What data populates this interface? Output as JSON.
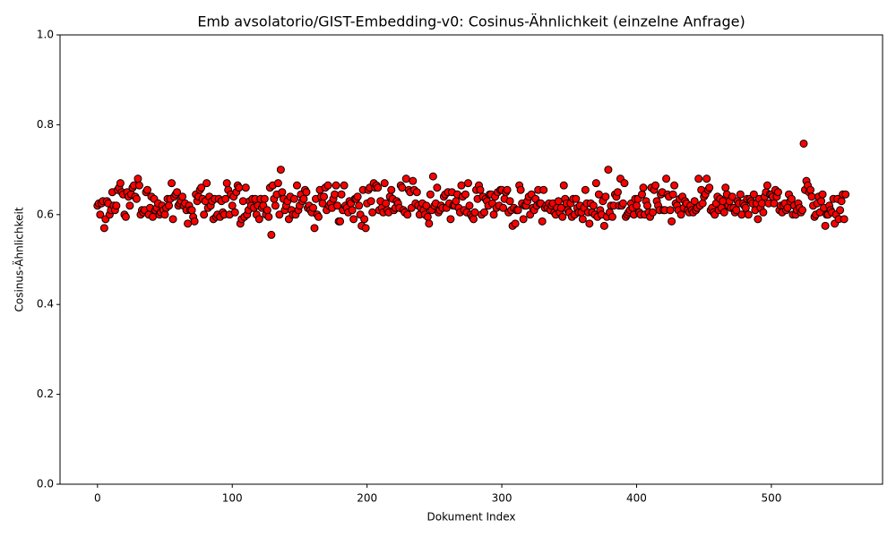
{
  "chart_data": {
    "type": "scatter",
    "title": "Emb avsolatorio/GIST-Embedding-v0: Cosinus-Ähnlichkeit (einzelne Anfrage)",
    "xlabel": "Dokument Index",
    "ylabel": "Cosinus-Ähnlichkeit",
    "color": "#ff0000",
    "edgecolor": "#000000",
    "xlim": [
      -27.8,
      582.5
    ],
    "xticks": [
      0,
      100,
      200,
      300,
      400,
      500
    ],
    "ylim": [
      0,
      1
    ],
    "yticks": [
      {
        "value": 0,
        "label": "0.0"
      },
      {
        "value": 0.2,
        "label": "0.2"
      },
      {
        "value": 0.4,
        "label": "0.4"
      },
      {
        "value": 0.6,
        "label": "0.6"
      },
      {
        "value": 0.8,
        "label": "0.8"
      },
      {
        "value": 1,
        "label": "1.0"
      }
    ],
    "grid": false,
    "x": [
      0,
      1,
      2,
      3,
      4,
      5,
      6,
      7,
      8,
      9,
      10,
      11,
      12,
      13,
      14,
      15,
      16,
      17,
      18,
      19,
      20,
      21,
      22,
      23,
      24,
      25,
      26,
      27,
      28,
      29,
      30,
      31,
      32,
      33,
      34,
      35,
      36,
      37,
      38,
      39,
      40,
      41,
      42,
      43,
      44,
      45,
      46,
      47,
      48,
      49,
      50,
      51,
      52,
      53,
      54,
      55,
      56,
      57,
      58,
      59,
      60,
      61,
      62,
      63,
      64,
      65,
      66,
      67,
      68,
      69,
      70,
      71,
      72,
      73,
      74,
      75,
      76,
      77,
      78,
      79,
      80,
      81,
      82,
      83,
      84,
      85,
      86,
      87,
      88,
      89,
      90,
      91,
      92,
      93,
      94,
      95,
      96,
      97,
      98,
      99,
      100,
      101,
      102,
      103,
      104,
      105,
      106,
      107,
      108,
      109,
      110,
      111,
      112,
      113,
      114,
      115,
      116,
      117,
      118,
      119,
      120,
      121,
      122,
      123,
      124,
      125,
      126,
      127,
      128,
      129,
      130,
      131,
      132,
      133,
      134,
      135,
      136,
      137,
      138,
      139,
      140,
      141,
      142,
      143,
      144,
      145,
      146,
      147,
      148,
      149,
      150,
      151,
      152,
      153,
      154,
      155,
      156,
      157,
      158,
      159,
      160,
      161,
      162,
      163,
      164,
      165,
      166,
      167,
      168,
      169,
      170,
      171,
      172,
      173,
      174,
      175,
      176,
      177,
      178,
      179,
      180,
      181,
      182,
      183,
      184,
      185,
      186,
      187,
      188,
      189,
      190,
      191,
      192,
      193,
      194,
      195,
      196,
      197,
      198,
      199,
      200,
      201,
      202,
      203,
      204,
      205,
      206,
      207,
      208,
      209,
      210,
      211,
      212,
      213,
      214,
      215,
      216,
      217,
      218,
      219,
      220,
      221,
      222,
      223,
      224,
      225,
      226,
      227,
      228,
      229,
      230,
      231,
      232,
      233,
      234,
      235,
      236,
      237,
      238,
      239,
      240,
      241,
      242,
      243,
      244,
      245,
      246,
      247,
      248,
      249,
      250,
      251,
      252,
      253,
      254,
      255,
      256,
      257,
      258,
      259,
      260,
      261,
      262,
      263,
      264,
      265,
      266,
      267,
      268,
      269,
      270,
      271,
      272,
      273,
      274,
      275,
      276,
      277,
      278,
      279,
      280,
      281,
      282,
      283,
      284,
      285,
      286,
      287,
      288,
      289,
      290,
      291,
      292,
      293,
      294,
      295,
      296,
      297,
      298,
      299,
      300,
      301,
      302,
      303,
      304,
      305,
      306,
      307,
      308,
      309,
      310,
      311,
      312,
      313,
      314,
      315,
      316,
      317,
      318,
      319,
      320,
      321,
      322,
      323,
      324,
      325,
      326,
      327,
      328,
      329,
      330,
      331,
      332,
      333,
      334,
      335,
      336,
      337,
      338,
      339,
      340,
      341,
      342,
      343,
      344,
      345,
      346,
      347,
      348,
      349,
      350,
      351,
      352,
      353,
      354,
      355,
      356,
      357,
      358,
      359,
      360,
      361,
      362,
      363,
      364,
      365,
      366,
      367,
      368,
      369,
      370,
      371,
      372,
      373,
      374,
      375,
      376,
      377,
      378,
      379,
      380,
      381,
      382,
      383,
      384,
      385,
      386,
      387,
      388,
      389,
      390,
      391,
      392,
      393,
      394,
      395,
      396,
      397,
      398,
      399,
      400,
      401,
      402,
      403,
      404,
      405,
      406,
      407,
      408,
      409,
      410,
      411,
      412,
      413,
      414,
      415,
      416,
      417,
      418,
      419,
      420,
      421,
      422,
      423,
      424,
      425,
      426,
      427,
      428,
      429,
      430,
      431,
      432,
      433,
      434,
      435,
      436,
      437,
      438,
      439,
      440,
      441,
      442,
      443,
      444,
      445,
      446,
      447,
      448,
      449,
      450,
      451,
      452,
      453,
      454,
      455,
      456,
      457,
      458,
      459,
      460,
      461,
      462,
      463,
      464,
      465,
      466,
      467,
      468,
      469,
      470,
      471,
      472,
      473,
      474,
      475,
      476,
      477,
      478,
      479,
      480,
      481,
      482,
      483,
      484,
      485,
      486,
      487,
      488,
      489,
      490,
      491,
      492,
      493,
      494,
      495,
      496,
      497,
      498,
      499,
      500,
      501,
      502,
      503,
      504,
      505,
      506,
      507,
      508,
      509,
      510,
      511,
      512,
      513,
      514,
      515,
      516,
      517,
      518,
      519,
      520,
      521,
      522,
      523,
      524,
      525,
      526,
      527,
      528,
      529,
      530,
      531,
      532,
      533,
      534,
      535,
      536,
      537,
      538,
      539,
      540,
      541,
      542,
      543,
      544,
      545,
      546,
      547,
      548,
      549,
      550,
      551,
      552,
      553,
      554,
      555
    ],
    "values": [
      0.62,
      0.625,
      0.6,
      0.625,
      0.63,
      0.57,
      0.59,
      0.63,
      0.625,
      0.6,
      0.61,
      0.65,
      0.62,
      0.61,
      0.62,
      0.655,
      0.66,
      0.67,
      0.65,
      0.645,
      0.6,
      0.595,
      0.65,
      0.64,
      0.62,
      0.645,
      0.66,
      0.665,
      0.64,
      0.635,
      0.68,
      0.665,
      0.6,
      0.61,
      0.605,
      0.61,
      0.65,
      0.655,
      0.6,
      0.615,
      0.64,
      0.595,
      0.635,
      0.61,
      0.615,
      0.625,
      0.6,
      0.605,
      0.62,
      0.61,
      0.6,
      0.615,
      0.635,
      0.62,
      0.635,
      0.67,
      0.59,
      0.64,
      0.645,
      0.65,
      0.62,
      0.625,
      0.63,
      0.64,
      0.62,
      0.625,
      0.61,
      0.58,
      0.62,
      0.61,
      0.61,
      0.595,
      0.585,
      0.645,
      0.63,
      0.64,
      0.655,
      0.66,
      0.635,
      0.6,
      0.63,
      0.67,
      0.615,
      0.64,
      0.62,
      0.63,
      0.59,
      0.635,
      0.595,
      0.6,
      0.635,
      0.595,
      0.63,
      0.605,
      0.6,
      0.635,
      0.67,
      0.655,
      0.6,
      0.645,
      0.62,
      0.64,
      0.605,
      0.65,
      0.665,
      0.66,
      0.58,
      0.59,
      0.63,
      0.595,
      0.66,
      0.6,
      0.61,
      0.63,
      0.62,
      0.635,
      0.615,
      0.635,
      0.6,
      0.62,
      0.59,
      0.635,
      0.615,
      0.62,
      0.635,
      0.6,
      0.61,
      0.595,
      0.66,
      0.555,
      0.665,
      0.635,
      0.62,
      0.645,
      0.67,
      0.6,
      0.7,
      0.65,
      0.635,
      0.61,
      0.62,
      0.63,
      0.59,
      0.64,
      0.61,
      0.6,
      0.635,
      0.6,
      0.665,
      0.61,
      0.62,
      0.645,
      0.63,
      0.635,
      0.655,
      0.65,
      0.615,
      0.62,
      0.61,
      0.605,
      0.615,
      0.57,
      0.635,
      0.6,
      0.595,
      0.655,
      0.64,
      0.625,
      0.64,
      0.66,
      0.61,
      0.665,
      0.62,
      0.625,
      0.615,
      0.635,
      0.645,
      0.665,
      0.62,
      0.585,
      0.585,
      0.645,
      0.61,
      0.665,
      0.62,
      0.615,
      0.605,
      0.63,
      0.625,
      0.61,
      0.59,
      0.635,
      0.635,
      0.64,
      0.62,
      0.6,
      0.575,
      0.655,
      0.59,
      0.57,
      0.625,
      0.655,
      0.66,
      0.63,
      0.605,
      0.67,
      0.66,
      0.665,
      0.66,
      0.61,
      0.63,
      0.615,
      0.605,
      0.67,
      0.625,
      0.61,
      0.605,
      0.64,
      0.655,
      0.635,
      0.61,
      0.615,
      0.63,
      0.625,
      0.615,
      0.665,
      0.66,
      0.61,
      0.605,
      0.68,
      0.6,
      0.655,
      0.65,
      0.615,
      0.675,
      0.655,
      0.625,
      0.65,
      0.62,
      0.6,
      0.615,
      0.625,
      0.61,
      0.6,
      0.62,
      0.595,
      0.58,
      0.645,
      0.61,
      0.685,
      0.62,
      0.625,
      0.66,
      0.605,
      0.61,
      0.62,
      0.615,
      0.64,
      0.645,
      0.615,
      0.65,
      0.625,
      0.59,
      0.65,
      0.62,
      0.62,
      0.63,
      0.645,
      0.615,
      0.605,
      0.665,
      0.64,
      0.61,
      0.645,
      0.605,
      0.67,
      0.62,
      0.6,
      0.595,
      0.59,
      0.605,
      0.655,
      0.635,
      0.665,
      0.655,
      0.6,
      0.64,
      0.605,
      0.635,
      0.63,
      0.62,
      0.645,
      0.645,
      0.625,
      0.6,
      0.64,
      0.615,
      0.65,
      0.62,
      0.655,
      0.655,
      0.615,
      0.635,
      0.65,
      0.655,
      0.605,
      0.63,
      0.61,
      0.575,
      0.615,
      0.58,
      0.61,
      0.61,
      0.665,
      0.655,
      0.625,
      0.59,
      0.62,
      0.62,
      0.63,
      0.64,
      0.6,
      0.645,
      0.615,
      0.61,
      0.635,
      0.62,
      0.655,
      0.625,
      0.625,
      0.585,
      0.655,
      0.615,
      0.62,
      0.615,
      0.625,
      0.61,
      0.62,
      0.625,
      0.605,
      0.6,
      0.615,
      0.63,
      0.605,
      0.615,
      0.595,
      0.665,
      0.635,
      0.625,
      0.61,
      0.605,
      0.625,
      0.595,
      0.635,
      0.6,
      0.635,
      0.615,
      0.605,
      0.62,
      0.605,
      0.59,
      0.615,
      0.655,
      0.625,
      0.605,
      0.58,
      0.625,
      0.605,
      0.62,
      0.6,
      0.67,
      0.595,
      0.645,
      0.61,
      0.6,
      0.63,
      0.575,
      0.64,
      0.595,
      0.7,
      0.605,
      0.62,
      0.595,
      0.62,
      0.645,
      0.64,
      0.65,
      0.62,
      0.68,
      0.62,
      0.625,
      0.67,
      0.595,
      0.6,
      0.605,
      0.61,
      0.625,
      0.615,
      0.6,
      0.635,
      0.62,
      0.635,
      0.605,
      0.6,
      0.645,
      0.66,
      0.6,
      0.63,
      0.62,
      0.605,
      0.595,
      0.66,
      0.605,
      0.655,
      0.665,
      0.63,
      0.62,
      0.61,
      0.645,
      0.65,
      0.61,
      0.61,
      0.68,
      0.645,
      0.64,
      0.61,
      0.585,
      0.645,
      0.665,
      0.625,
      0.62,
      0.61,
      0.635,
      0.6,
      0.64,
      0.615,
      0.63,
      0.625,
      0.61,
      0.605,
      0.62,
      0.61,
      0.605,
      0.63,
      0.61,
      0.615,
      0.68,
      0.62,
      0.655,
      0.625,
      0.64,
      0.645,
      0.68,
      0.655,
      0.66,
      0.61,
      0.615,
      0.605,
      0.6,
      0.625,
      0.64,
      0.61,
      0.635,
      0.615,
      0.63,
      0.605,
      0.66,
      0.645,
      0.62,
      0.63,
      0.615,
      0.64,
      0.615,
      0.605,
      0.61,
      0.63,
      0.625,
      0.645,
      0.6,
      0.625,
      0.62,
      0.615,
      0.635,
      0.6,
      0.635,
      0.63,
      0.625,
      0.645,
      0.61,
      0.625,
      0.59,
      0.635,
      0.615,
      0.625,
      0.605,
      0.64,
      0.65,
      0.665,
      0.625,
      0.645,
      0.645,
      0.64,
      0.625,
      0.655,
      0.64,
      0.65,
      0.61,
      0.62,
      0.605,
      0.62,
      0.625,
      0.61,
      0.615,
      0.645,
      0.63,
      0.635,
      0.6,
      0.62,
      0.6,
      0.61,
      0.625,
      0.615,
      0.605,
      0.61,
      0.758,
      0.655,
      0.675,
      0.665,
      0.65,
      0.655,
      0.64,
      0.62,
      0.595,
      0.6,
      0.625,
      0.64,
      0.605,
      0.63,
      0.645,
      0.615,
      0.575,
      0.6,
      0.6,
      0.62,
      0.61,
      0.605,
      0.635,
      0.58,
      0.6,
      0.635,
      0.59,
      0.61,
      0.63,
      0.645,
      0.59,
      0.645
    ]
  }
}
